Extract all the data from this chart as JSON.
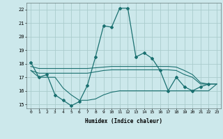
{
  "bg_color": "#cce8eb",
  "grid_color": "#aacccc",
  "line_color": "#1a7070",
  "xlabel": "Humidex (Indice chaleur)",
  "xlim": [
    -0.5,
    23.5
  ],
  "ylim": [
    14.7,
    22.5
  ],
  "yticks": [
    15,
    16,
    17,
    18,
    19,
    20,
    21,
    22
  ],
  "xticks": [
    0,
    1,
    2,
    3,
    4,
    5,
    6,
    7,
    8,
    9,
    10,
    11,
    12,
    13,
    14,
    15,
    16,
    17,
    18,
    19,
    20,
    21,
    22,
    23
  ],
  "line1_x": [
    0,
    1,
    2,
    3,
    4,
    5,
    6,
    7,
    8,
    9,
    10,
    11,
    12,
    13,
    14,
    15,
    16,
    17,
    18,
    19,
    20,
    21,
    22
  ],
  "line1_y": [
    18.1,
    17.0,
    17.2,
    15.7,
    15.3,
    14.9,
    15.2,
    16.4,
    18.5,
    20.8,
    20.7,
    22.1,
    22.1,
    18.5,
    18.8,
    18.4,
    17.5,
    16.0,
    17.0,
    16.3,
    16.0,
    16.3,
    16.5
  ],
  "line2_x": [
    0,
    1,
    2,
    3,
    4,
    5,
    6,
    7,
    8,
    9,
    10,
    11,
    12,
    13,
    14,
    15,
    16,
    17,
    18,
    19,
    20,
    21,
    22,
    23
  ],
  "line2_y": [
    17.8,
    17.65,
    17.65,
    17.65,
    17.65,
    17.65,
    17.65,
    17.65,
    17.7,
    17.75,
    17.8,
    17.8,
    17.8,
    17.8,
    17.8,
    17.8,
    17.8,
    17.8,
    17.75,
    17.5,
    17.2,
    16.6,
    16.5,
    16.5
  ],
  "line3_x": [
    0,
    1,
    2,
    3,
    4,
    5,
    6,
    7,
    8,
    9,
    10,
    11,
    12,
    13,
    14,
    15,
    16,
    17,
    18,
    19,
    20,
    21,
    22,
    23
  ],
  "line3_y": [
    17.5,
    17.3,
    17.3,
    17.3,
    17.3,
    17.3,
    17.3,
    17.3,
    17.4,
    17.5,
    17.55,
    17.55,
    17.55,
    17.55,
    17.55,
    17.55,
    17.55,
    17.55,
    17.5,
    17.2,
    17.0,
    16.5,
    16.5,
    16.5
  ],
  "line4_x": [
    0,
    1,
    2,
    3,
    4,
    5,
    6,
    7,
    8,
    9,
    10,
    11,
    12,
    13,
    14,
    15,
    16,
    17,
    18,
    19,
    20,
    21,
    22,
    23
  ],
  "line4_y": [
    17.5,
    17.0,
    17.0,
    17.0,
    16.2,
    15.7,
    15.3,
    15.3,
    15.4,
    15.7,
    15.9,
    16.0,
    16.0,
    16.0,
    16.0,
    16.0,
    16.0,
    16.0,
    16.0,
    16.0,
    16.0,
    16.0,
    16.0,
    16.5
  ]
}
